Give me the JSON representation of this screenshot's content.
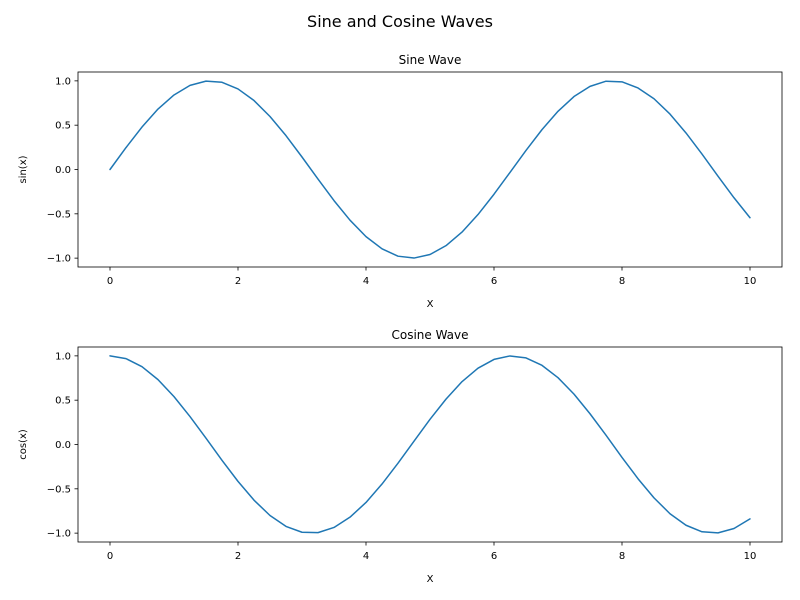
{
  "figure": {
    "title": "Sine and Cosine Waves"
  },
  "chart_data": [
    {
      "type": "line",
      "title": "Sine Wave",
      "xlabel": "X",
      "ylabel": "sin(x)",
      "xlim": [
        -0.5,
        10.5
      ],
      "ylim": [
        -1.1,
        1.1
      ],
      "xticks": [
        0,
        2,
        4,
        6,
        8,
        10
      ],
      "xtick_labels": [
        "0",
        "2",
        "4",
        "6",
        "8",
        "10"
      ],
      "yticks": [
        -1.0,
        -0.5,
        0.0,
        0.5,
        1.0
      ],
      "ytick_labels": [
        "−1.0",
        "−0.5",
        "0.0",
        "0.5",
        "1.0"
      ],
      "grid": false,
      "series": [
        {
          "color": "#1f77b4",
          "x": [
            0,
            0.25,
            0.5,
            0.75,
            1,
            1.25,
            1.5,
            1.75,
            2,
            2.25,
            2.5,
            2.75,
            3,
            3.25,
            3.5,
            3.75,
            4,
            4.25,
            4.5,
            4.75,
            5,
            5.25,
            5.5,
            5.75,
            6,
            6.25,
            6.5,
            6.75,
            7,
            7.25,
            7.5,
            7.75,
            8,
            8.25,
            8.5,
            8.75,
            9,
            9.25,
            9.5,
            9.75,
            10
          ],
          "y": [
            0.0,
            0.247,
            0.479,
            0.682,
            0.841,
            0.949,
            0.997,
            0.984,
            0.909,
            0.778,
            0.598,
            0.382,
            0.141,
            -0.108,
            -0.351,
            -0.572,
            -0.757,
            -0.895,
            -0.978,
            -0.999,
            -0.959,
            -0.859,
            -0.706,
            -0.508,
            -0.279,
            -0.033,
            0.215,
            0.45,
            0.657,
            0.823,
            0.938,
            0.996,
            0.989,
            0.92,
            0.798,
            0.625,
            0.412,
            0.174,
            -0.075,
            -0.319,
            -0.544
          ]
        }
      ]
    },
    {
      "type": "line",
      "title": "Cosine Wave",
      "xlabel": "X",
      "ylabel": "cos(x)",
      "xlim": [
        -0.5,
        10.5
      ],
      "ylim": [
        -1.1,
        1.1
      ],
      "xticks": [
        0,
        2,
        4,
        6,
        8,
        10
      ],
      "xtick_labels": [
        "0",
        "2",
        "4",
        "6",
        "8",
        "10"
      ],
      "yticks": [
        -1.0,
        -0.5,
        0.0,
        0.5,
        1.0
      ],
      "ytick_labels": [
        "−1.0",
        "−0.5",
        "0.0",
        "0.5",
        "1.0"
      ],
      "grid": false,
      "series": [
        {
          "color": "#1f77b4",
          "x": [
            0,
            0.25,
            0.5,
            0.75,
            1,
            1.25,
            1.5,
            1.75,
            2,
            2.25,
            2.5,
            2.75,
            3,
            3.25,
            3.5,
            3.75,
            4,
            4.25,
            4.5,
            4.75,
            5,
            5.25,
            5.5,
            5.75,
            6,
            6.25,
            6.5,
            6.75,
            7,
            7.25,
            7.5,
            7.75,
            8,
            8.25,
            8.5,
            8.75,
            9,
            9.25,
            9.5,
            9.75,
            10
          ],
          "y": [
            1.0,
            0.969,
            0.878,
            0.732,
            0.54,
            0.315,
            0.071,
            -0.178,
            -0.416,
            -0.628,
            -0.801,
            -0.924,
            -0.99,
            -0.994,
            -0.936,
            -0.82,
            -0.654,
            -0.446,
            -0.211,
            0.037,
            0.284,
            0.512,
            0.709,
            0.861,
            0.96,
            0.999,
            0.977,
            0.893,
            0.754,
            0.568,
            0.347,
            0.105,
            -0.146,
            -0.386,
            -0.602,
            -0.781,
            -0.911,
            -0.985,
            -0.997,
            -0.948,
            -0.839
          ]
        }
      ]
    }
  ]
}
